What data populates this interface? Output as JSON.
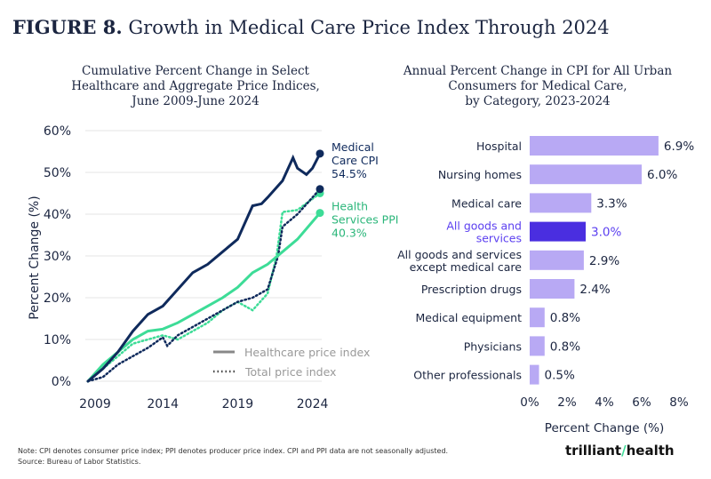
{
  "figure": {
    "label": "FIGURE 8.",
    "title": "Growth in Medical Care Price Index Through 2024"
  },
  "note": "Note: CPI denotes consumer price index; PPI denotes producer price index. CPI and PPI data are not seasonally adjusted.",
  "source": "Source: Bureau of Labor Statistics.",
  "logo": "trilliant health",
  "chart_data": [
    {
      "type": "line",
      "title": "Cumulative Percent Change in Select Healthcare and Aggregate Price Indices, June 2009-June 2024",
      "title_lines": [
        "Cumulative Percent Change in Select",
        "Healthcare and Aggregate Price Indices,",
        "June 2009-June 2024"
      ],
      "ylabel": "Percent Change (%)",
      "xlabel": "",
      "ylim": [
        0,
        60
      ],
      "xlim": [
        2009,
        2024.5
      ],
      "yticks": [
        "0%",
        "10%",
        "20%",
        "30%",
        "40%",
        "50%",
        "60%"
      ],
      "xticks": [
        "2009",
        "2014",
        "2019",
        "2024"
      ],
      "grid": true,
      "legend": {
        "placement": "bottom-right",
        "entries": [
          "Healthcare price index",
          "Total price index"
        ]
      },
      "series": [
        {
          "name": "Medical Care CPI",
          "end_label": [
            "Medical",
            "Care CPI",
            "54.5%"
          ],
          "color": "#0f2a5c",
          "style": "solid",
          "x": [
            2009,
            2010,
            2011,
            2012,
            2013,
            2014,
            2015,
            2016,
            2017,
            2018,
            2019,
            2020,
            2020.6,
            2021,
            2022,
            2022.7,
            2023,
            2023.6,
            2024,
            2024.5
          ],
          "y": [
            0,
            3,
            7,
            12,
            16,
            18,
            22,
            26,
            28,
            31,
            34,
            42,
            42.5,
            44,
            48,
            53.5,
            51,
            49.5,
            51,
            54.5
          ]
        },
        {
          "name": "Health Services PPI",
          "end_label": [
            "Health",
            "Services PPI",
            "40.3%"
          ],
          "color": "#3ddc97",
          "style": "solid",
          "x": [
            2009,
            2010,
            2011,
            2012,
            2013,
            2014,
            2015,
            2016,
            2017,
            2018,
            2019,
            2020,
            2021,
            2022,
            2023,
            2024.5
          ],
          "y": [
            0,
            4,
            7,
            10,
            12,
            12.5,
            14,
            16,
            18,
            20,
            22.5,
            26,
            28,
            31,
            34,
            40.3
          ]
        },
        {
          "color": "#0f2a5c",
          "style": "dotted",
          "x": [
            2009,
            2010,
            2011,
            2012,
            2013,
            2014,
            2014.3,
            2015,
            2016,
            2017,
            2018,
            2019,
            2020,
            2021,
            2021.7,
            2022,
            2023,
            2024.5
          ],
          "y": [
            0,
            1,
            4,
            6,
            8,
            10.5,
            8.5,
            11,
            13,
            15,
            17,
            19,
            20,
            22,
            30,
            37,
            40,
            46
          ]
        },
        {
          "color": "#3ddc97",
          "style": "dotted",
          "x": [
            2009,
            2010,
            2011,
            2012,
            2013,
            2014,
            2015,
            2016,
            2017,
            2018,
            2019,
            2020,
            2021,
            2021.6,
            2022,
            2023,
            2024.5
          ],
          "y": [
            0,
            3,
            6,
            9,
            10,
            11,
            10,
            12,
            14,
            17,
            19,
            17,
            21,
            30,
            40.5,
            41,
            45
          ]
        }
      ]
    },
    {
      "type": "bar",
      "orientation": "horizontal",
      "title_lines": [
        "Annual Percent Change in CPI for All Urban",
        "Consumers for Medical Care,",
        "by Category, 2023-2024"
      ],
      "xlabel": "Percent Change (%)",
      "xlim": [
        0,
        8
      ],
      "xticks": [
        "0%",
        "2%",
        "4%",
        "6%",
        "8%"
      ],
      "categories": [
        [
          "Hospital"
        ],
        [
          "Nursing homes"
        ],
        [
          "Medical care"
        ],
        [
          "All goods and",
          "services"
        ],
        [
          "All goods and services",
          "except medical care"
        ],
        [
          "Prescription drugs"
        ],
        [
          "Medical equipment"
        ],
        [
          "Physicians"
        ],
        [
          "Other professionals"
        ]
      ],
      "values": [
        6.9,
        6.0,
        3.3,
        3.0,
        2.9,
        2.4,
        0.8,
        0.8,
        0.5
      ],
      "value_labels": [
        "6.9%",
        "6.0%",
        "3.3%",
        "3.0%",
        "2.9%",
        "2.4%",
        "0.8%",
        "0.8%",
        "0.5%"
      ],
      "highlight_index": 3,
      "colors": {
        "bar": "#b8a9f4",
        "highlight": "#4a2ee0",
        "highlight_text": "#5b3ff0"
      }
    }
  ]
}
